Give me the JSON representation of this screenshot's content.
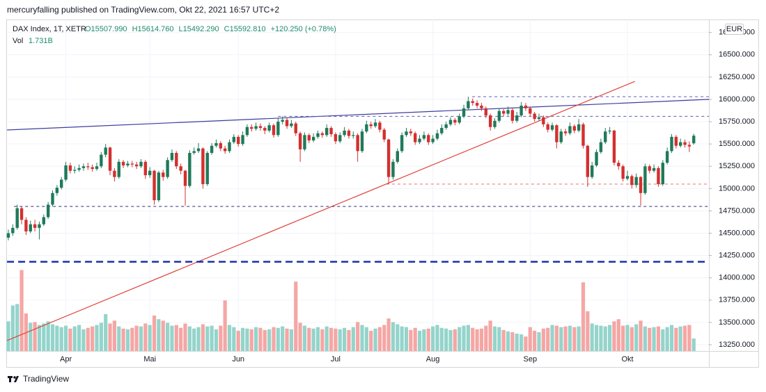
{
  "header": {
    "publisher": "mercuryfalling published on TradingView.com, Okt 22, 2021 16:57 UTC+2",
    "brand": "TradingView"
  },
  "chart_data": {
    "type": "candlestick",
    "symbol": "DAX Index, 1T, XETR",
    "ohlc_labels": [
      "O15507.990",
      "H15614.760",
      "L15492.290",
      "C15592.810",
      "+120.250 (+0.78%)"
    ],
    "volume_title": "Vol",
    "volume_label": "1.731B",
    "currency": "EUR",
    "categories": [
      null,
      null,
      null,
      null,
      null,
      null,
      null,
      null,
      null,
      null,
      null,
      null,
      null,
      "Apr",
      null,
      null,
      null,
      null,
      null,
      null,
      null,
      null,
      null,
      null,
      null,
      null,
      null,
      null,
      null,
      null,
      null,
      null,
      "Mai",
      null,
      null,
      null,
      null,
      null,
      null,
      null,
      null,
      null,
      null,
      null,
      null,
      null,
      null,
      null,
      null,
      null,
      null,
      null,
      "Jun",
      null,
      null,
      null,
      null,
      null,
      null,
      null,
      null,
      null,
      null,
      null,
      null,
      null,
      null,
      null,
      null,
      null,
      null,
      null,
      null,
      null,
      "Jul",
      null,
      null,
      null,
      null,
      null,
      null,
      null,
      null,
      null,
      null,
      null,
      null,
      null,
      null,
      null,
      null,
      null,
      null,
      null,
      null,
      null,
      "Aug",
      null,
      null,
      null,
      null,
      null,
      null,
      null,
      null,
      null,
      null,
      null,
      null,
      null,
      null,
      null,
      null,
      null,
      null,
      null,
      null,
      null,
      "Sep",
      null,
      null,
      null,
      null,
      null,
      null,
      null,
      null,
      null,
      null,
      null,
      null,
      null,
      null,
      null,
      null,
      null,
      null,
      null,
      null,
      null,
      "Okt",
      null,
      null,
      null,
      null,
      null,
      null,
      null,
      null,
      null,
      null,
      null,
      null,
      null,
      null,
      null
    ],
    "open": [
      14450,
      14500,
      14560,
      14780,
      14650,
      14520,
      14600,
      14560,
      14600,
      14680,
      14820,
      14950,
      15010,
      15100,
      15260,
      15200,
      15210,
      15230,
      15250,
      15240,
      15220,
      15250,
      15380,
      15460,
      15200,
      15130,
      15300,
      15260,
      15280,
      15270,
      15250,
      15300,
      15150,
      15200,
      14870,
      15180,
      15130,
      15320,
      15400,
      15250,
      15200,
      15030,
      15400,
      15420,
      15450,
      15050,
      15400,
      15480,
      15510,
      15450,
      15420,
      15520,
      15580,
      15500,
      15600,
      15690,
      15670,
      15700,
      15680,
      15650,
      15710,
      15600,
      15750,
      15770,
      15700,
      15730,
      15620,
      15440,
      15600,
      15540,
      15580,
      15620,
      15600,
      15680,
      15610,
      15530,
      15600,
      15650,
      15590,
      15600,
      15420,
      15640,
      15720,
      15700,
      15740,
      15660,
      15550,
      15130,
      15300,
      15420,
      15600,
      15640,
      15620,
      15520,
      15560,
      15600,
      15520,
      15560,
      15620,
      15680,
      15720,
      15770,
      15740,
      15810,
      15900,
      15980,
      15960,
      15930,
      15900,
      15820,
      15690,
      15760,
      15870,
      15840,
      15880,
      15760,
      15820,
      15930,
      15900,
      15840,
      15780,
      15800,
      15720,
      15660,
      15710,
      15520,
      15640,
      15620,
      15700,
      15650,
      15720,
      15480,
      15130,
      15260,
      15410,
      15520,
      15640,
      15650,
      15290,
      15250,
      15110,
      15140,
      15040,
      15130,
      14950,
      15250,
      15200,
      15230,
      15050,
      15290,
      15420,
      15580,
      15480,
      15520,
      15490,
      15507.99
    ],
    "high": [
      14540,
      14600,
      14820,
      14800,
      14680,
      14640,
      14650,
      14630,
      14710,
      14850,
      14980,
      15040,
      15130,
      15300,
      15290,
      15250,
      15270,
      15280,
      15290,
      15270,
      15290,
      15410,
      15500,
      15470,
      15230,
      15330,
      15320,
      15310,
      15310,
      15300,
      15330,
      15320,
      15240,
      15210,
      15200,
      15210,
      15350,
      15440,
      15420,
      15280,
      15210,
      15430,
      15460,
      15510,
      15460,
      15420,
      15510,
      15550,
      15530,
      15480,
      15550,
      15610,
      15600,
      15640,
      15720,
      15720,
      15740,
      15730,
      15700,
      15740,
      15730,
      15790,
      15810,
      15790,
      15770,
      15750,
      15640,
      15630,
      15620,
      15620,
      15650,
      15640,
      15720,
      15700,
      15630,
      15630,
      15690,
      15670,
      15640,
      15620,
      15670,
      15760,
      15750,
      15780,
      15760,
      15680,
      15560,
      15330,
      15450,
      15630,
      15680,
      15670,
      15640,
      15600,
      15640,
      15620,
      15600,
      15660,
      15720,
      15750,
      15800,
      15790,
      15840,
      15940,
      16030,
      16010,
      15990,
      15960,
      15920,
      15840,
      15790,
      15900,
      15890,
      15920,
      15900,
      15860,
      15970,
      15960,
      15920,
      15860,
      15840,
      15820,
      15740,
      15740,
      15720,
      15670,
      15670,
      15740,
      15720,
      15780,
      15740,
      15490,
      15300,
      15440,
      15560,
      15680,
      15690,
      15660,
      15320,
      15270,
      15200,
      15160,
      15170,
      15140,
      15280,
      15270,
      15270,
      15250,
      15320,
      15460,
      15610,
      15600,
      15560,
      15550,
      15530,
      15614.76
    ],
    "low": [
      14420,
      14470,
      14540,
      14600,
      14480,
      14500,
      14520,
      14430,
      14580,
      14660,
      14800,
      14920,
      14990,
      15080,
      15170,
      15170,
      15190,
      15200,
      15210,
      15190,
      15200,
      15230,
      15350,
      15150,
      15080,
      15110,
      15230,
      15240,
      15240,
      15220,
      15230,
      15110,
      15120,
      14820,
      14850,
      15090,
      15110,
      15300,
      15220,
      15160,
      14810,
      15010,
      15380,
      15400,
      15000,
      15030,
      15380,
      15460,
      15420,
      15390,
      15400,
      15500,
      15470,
      15480,
      15580,
      15640,
      15650,
      15650,
      15610,
      15630,
      15570,
      15580,
      15720,
      15670,
      15680,
      15590,
      15300,
      15420,
      15510,
      15520,
      15560,
      15570,
      15580,
      15580,
      15500,
      15510,
      15580,
      15560,
      15560,
      15300,
      15400,
      15620,
      15670,
      15680,
      15630,
      15520,
      15050,
      15100,
      15280,
      15400,
      15580,
      15590,
      15490,
      15500,
      15540,
      15490,
      15500,
      15540,
      15600,
      15660,
      15700,
      15710,
      15720,
      15790,
      15880,
      15930,
      15900,
      15870,
      15790,
      15650,
      15670,
      15740,
      15810,
      15820,
      15730,
      15740,
      15800,
      15870,
      15810,
      15750,
      15760,
      15690,
      15630,
      15640,
      15450,
      15500,
      15590,
      15600,
      15620,
      15630,
      15450,
      15020,
      15110,
      15240,
      15390,
      15500,
      15610,
      15260,
      15210,
      15080,
      15090,
      15000,
      15010,
      14810,
      14930,
      15170,
      15180,
      15020,
      15030,
      15270,
      15400,
      15450,
      15460,
      15460,
      15410,
      15492.29
    ],
    "close": [
      14500,
      14560,
      14780,
      14650,
      14520,
      14600,
      14560,
      14600,
      14680,
      14820,
      14950,
      15010,
      15100,
      15260,
      15200,
      15210,
      15230,
      15250,
      15240,
      15220,
      15250,
      15380,
      15460,
      15200,
      15130,
      15300,
      15260,
      15280,
      15270,
      15250,
      15300,
      15150,
      15200,
      14870,
      15180,
      15130,
      15320,
      15400,
      15250,
      15200,
      15030,
      15400,
      15420,
      15450,
      15050,
      15400,
      15480,
      15510,
      15450,
      15420,
      15520,
      15580,
      15500,
      15600,
      15690,
      15670,
      15700,
      15680,
      15650,
      15710,
      15600,
      15750,
      15770,
      15700,
      15730,
      15620,
      15440,
      15600,
      15540,
      15580,
      15620,
      15600,
      15680,
      15610,
      15530,
      15600,
      15650,
      15590,
      15600,
      15420,
      15640,
      15720,
      15700,
      15740,
      15660,
      15550,
      15130,
      15300,
      15420,
      15600,
      15640,
      15620,
      15520,
      15560,
      15600,
      15520,
      15560,
      15620,
      15680,
      15720,
      15770,
      15740,
      15810,
      15900,
      15980,
      15960,
      15930,
      15900,
      15820,
      15690,
      15760,
      15870,
      15840,
      15880,
      15760,
      15820,
      15930,
      15900,
      15840,
      15780,
      15800,
      15720,
      15660,
      15710,
      15520,
      15640,
      15620,
      15700,
      15650,
      15720,
      15480,
      15130,
      15260,
      15410,
      15520,
      15640,
      15650,
      15290,
      15250,
      15110,
      15140,
      15040,
      15130,
      14950,
      15250,
      15200,
      15230,
      15050,
      15290,
      15420,
      15580,
      15480,
      15520,
      15490,
      15472.56,
      15592.81
    ],
    "volume": [
      4.1,
      6.3,
      6.5,
      11.2,
      5.2,
      3.9,
      4.0,
      3.6,
      3.8,
      4.1,
      3.7,
      3.5,
      3.3,
      3.5,
      3.1,
      3.4,
      3.6,
      3.0,
      3.2,
      3.4,
      3.6,
      3.9,
      5.1,
      3.8,
      4.2,
      3.4,
      3.1,
      3.0,
      3.2,
      3.5,
      3.4,
      3.8,
      3.6,
      4.9,
      4.4,
      4.2,
      3.9,
      3.5,
      3.6,
      3.2,
      3.8,
      3.4,
      3.1,
      3.3,
      3.7,
      3.4,
      3.5,
      3.0,
      3.5,
      7.0,
      3.6,
      3.3,
      2.8,
      3.2,
      3.1,
      3.0,
      3.3,
      3.2,
      2.9,
      3.0,
      3.3,
      3.2,
      3.4,
      3.1,
      3.0,
      9.6,
      3.9,
      3.5,
      3.2,
      3.1,
      3.3,
      3.0,
      3.4,
      3.2,
      3.1,
      3.0,
      3.2,
      2.9,
      3.3,
      4.0,
      3.6,
      3.3,
      2.8,
      3.1,
      3.3,
      3.6,
      4.5,
      4.0,
      3.7,
      3.4,
      3.3,
      2.9,
      3.2,
      2.8,
      3.0,
      3.1,
      3.4,
      3.6,
      3.2,
      3.1,
      2.9,
      3.0,
      3.3,
      3.5,
      3.6,
      3.2,
      3.0,
      3.1,
      3.5,
      4.2,
      3.4,
      3.3,
      2.9,
      2.7,
      2.6,
      2.4,
      2.3,
      2.0,
      3.3,
      2.8,
      2.6,
      3.1,
      3.2,
      3.6,
      3.5,
      3.3,
      3.4,
      3.5,
      3.3,
      3.4,
      9.5,
      5.5,
      3.8,
      3.6,
      3.5,
      3.4,
      3.6,
      4.1,
      4.4,
      3.5,
      3.6,
      3.3,
      3.7,
      4.2,
      3.4,
      3.2,
      3.3,
      3.4,
      3.0,
      3.3,
      3.6,
      3.2,
      3.4,
      3.5,
      3.6,
      1.731
    ],
    "up_color": "#1f7a5a",
    "down_color": "#d3302f",
    "volume_up_color": "#94d4cb",
    "volume_down_color": "#f5a6a4",
    "ylim": [
      13180,
      16880
    ],
    "vlim": [
      0,
      12.5
    ],
    "yticks": [
      {
        "value": 13250,
        "label": "13250.000"
      },
      {
        "value": 13500,
        "label": "13500.000"
      },
      {
        "value": 13750,
        "label": "13750.000"
      },
      {
        "value": 14000,
        "label": "14000.000"
      },
      {
        "value": 14250,
        "label": "14250.000"
      },
      {
        "value": 14500,
        "label": "14500.000"
      },
      {
        "value": 14750,
        "label": "14750.000"
      },
      {
        "value": 15000,
        "label": "15000.000"
      },
      {
        "value": 15250,
        "label": "15250.000"
      },
      {
        "value": 15500,
        "label": "15500.000"
      },
      {
        "value": 15750,
        "label": "15750.000"
      },
      {
        "value": 16000,
        "label": "16000.000"
      },
      {
        "value": 16250,
        "label": "16250.000"
      },
      {
        "value": 16500,
        "label": "16500.000"
      },
      {
        "value": 16750,
        "label": "16750.000"
      }
    ],
    "grid": true,
    "drawings": [
      {
        "kind": "trend",
        "x1": -0.3,
        "p1": 15657,
        "x2": 158.4,
        "p2": 16000,
        "color": "#3d3d9e",
        "width": 1.2
      },
      {
        "kind": "trend",
        "x1": -0.3,
        "p1": 13297,
        "x2": 141.7,
        "p2": 16202,
        "color": "#e0413a",
        "width": 1.2
      },
      {
        "kind": "hline",
        "x1": 1.3,
        "p1": 14800,
        "color": "#2b2b7a",
        "width": 1,
        "dash": "4 4"
      },
      {
        "kind": "hline",
        "x1": 85.5,
        "p1": 15050,
        "color": "#e57373",
        "width": 1,
        "dash": "4 4"
      },
      {
        "kind": "hline",
        "x1": 61,
        "p1": 15810,
        "color": "#5a5ab0",
        "width": 1,
        "dash": "4 4"
      },
      {
        "kind": "hline",
        "x1": 104.9,
        "p1": 16030,
        "color": "#5a5ab0",
        "width": 1,
        "dash": "4 4"
      },
      {
        "kind": "hline",
        "x1": -0.3,
        "p1": 14180,
        "color": "#1a2fa6",
        "width": 2.5,
        "dash": "10 6"
      }
    ]
  }
}
